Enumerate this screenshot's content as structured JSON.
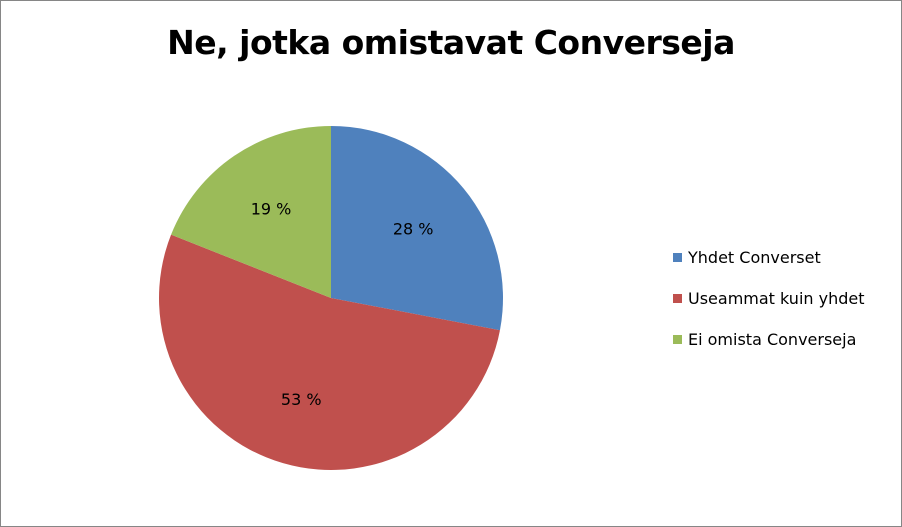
{
  "chart_data": {
    "type": "pie",
    "title": "Ne, jotka omistavat Converseja",
    "categories": [
      "Yhdet Converset",
      "Useammat kuin yhdet",
      "Ei omista Converseja"
    ],
    "values": [
      28,
      53,
      19
    ],
    "value_labels": [
      "28 %",
      "53 %",
      "19 %"
    ],
    "colors": [
      "#4F81BD",
      "#C0504D",
      "#9BBB59"
    ],
    "legend_position": "right"
  }
}
